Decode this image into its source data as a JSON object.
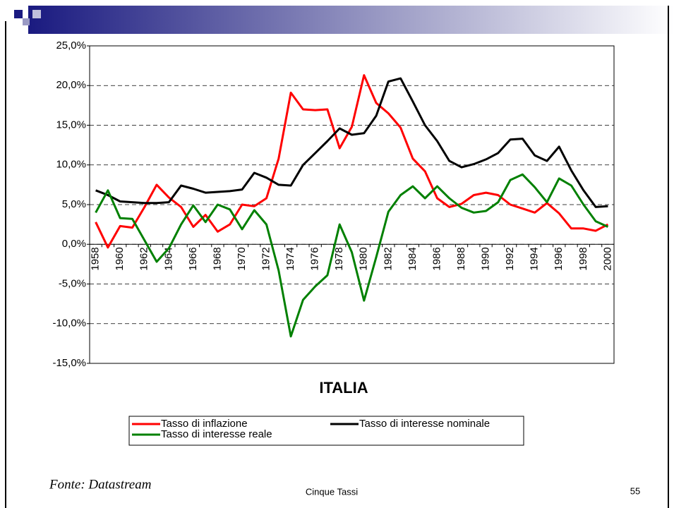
{
  "chart_data": {
    "type": "line",
    "title": "ITALIA",
    "categories": [
      "1958",
      null,
      "1960",
      null,
      "1962",
      null,
      "1964",
      null,
      "1966",
      null,
      "1968",
      null,
      "1970",
      null,
      "1972",
      null,
      "1974",
      null,
      "1976",
      null,
      "1978",
      null,
      "1980",
      null,
      "1982",
      null,
      "1984",
      null,
      "1986",
      null,
      "1988",
      null,
      "1990",
      null,
      "1992",
      null,
      "1994",
      null,
      "1996",
      null,
      "1998",
      null,
      "2000"
    ],
    "series": [
      {
        "name": "Tasso di inflazione",
        "color": "#ff0000",
        "values": [
          2.8,
          -0.4,
          2.3,
          2.1,
          4.7,
          7.5,
          5.9,
          4.7,
          2.2,
          3.7,
          1.6,
          2.5,
          5.0,
          4.8,
          5.8,
          10.8,
          19.1,
          17.0,
          16.9,
          17.0,
          12.1,
          14.8,
          21.3,
          17.8,
          16.5,
          14.7,
          10.8,
          9.2,
          5.8,
          4.7,
          5.1,
          6.2,
          6.5,
          6.2,
          5.0,
          4.5,
          4.0,
          5.2,
          3.9,
          2.0,
          2.0,
          1.7,
          2.5
        ]
      },
      {
        "name": "Tasso di interesse nominale",
        "color": "#000000",
        "values": [
          6.8,
          6.2,
          5.4,
          5.3,
          5.2,
          5.2,
          5.3,
          7.4,
          7.0,
          6.5,
          6.6,
          6.7,
          6.9,
          9.0,
          8.4,
          7.5,
          7.4,
          10.0,
          11.5,
          13.0,
          14.6,
          13.8,
          14.0,
          16.2,
          20.5,
          20.9,
          18.0,
          15.0,
          13.0,
          10.5,
          9.7,
          10.1,
          10.7,
          11.5,
          13.2,
          13.3,
          11.2,
          10.5,
          12.3,
          9.3,
          6.8,
          4.7,
          4.8
        ]
      },
      {
        "name": "Tasso di interesse reale",
        "color": "#008000",
        "values": [
          4.0,
          6.8,
          3.3,
          3.2,
          0.5,
          -2.2,
          -0.5,
          2.5,
          4.9,
          2.8,
          5.0,
          4.4,
          1.9,
          4.3,
          2.5,
          -3.3,
          -11.6,
          -7.0,
          -5.3,
          -3.9,
          2.5,
          -1.0,
          -7.1,
          -1.6,
          4.1,
          6.2,
          7.3,
          5.8,
          7.3,
          5.8,
          4.6,
          4.0,
          4.2,
          5.3,
          8.1,
          8.8,
          7.2,
          5.3,
          8.3,
          7.4,
          5.0,
          2.9,
          2.2
        ]
      }
    ],
    "ylim": [
      -15,
      25
    ],
    "yticks": [
      {
        "value": -15,
        "label": "-15,0%"
      },
      {
        "value": -10,
        "label": "-10,0%"
      },
      {
        "value": -5,
        "label": "-5,0%"
      },
      {
        "value": 0,
        "label": "0,0%"
      },
      {
        "value": 5,
        "label": "5,0%"
      },
      {
        "value": 10,
        "label": "10,0%"
      },
      {
        "value": 15,
        "label": "15,0%"
      },
      {
        "value": 20,
        "label": "20,0%"
      },
      {
        "value": 25,
        "label": "25,0%"
      }
    ],
    "grid": true,
    "legend": "bottom"
  },
  "footer": {
    "source": "Fonte: Datastream",
    "title": "Cinque Tassi",
    "page": "55"
  }
}
